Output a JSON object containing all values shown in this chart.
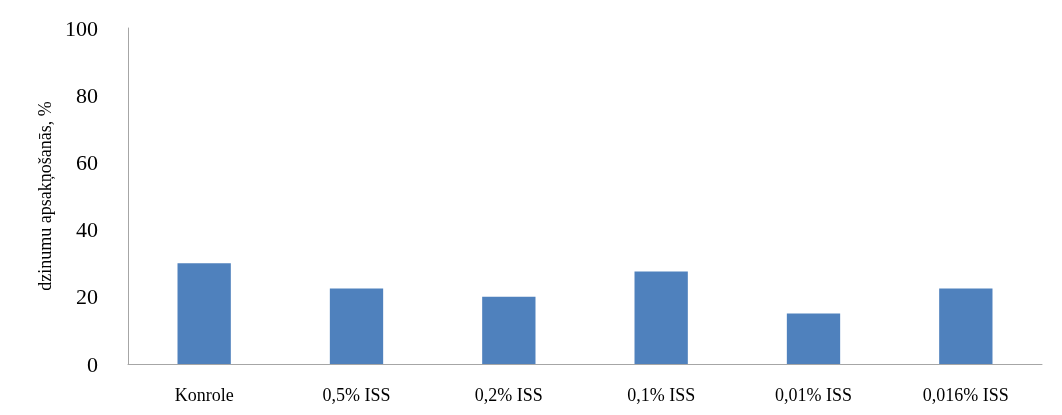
{
  "chart_data": {
    "type": "bar",
    "ylabel": "dzinumu apsakņošanās, %",
    "categories": [
      "Konrole",
      "0,5% ISS",
      "0,2% ISS",
      "0,1% ISS",
      "0,01% ISS",
      "0,016% ISS"
    ],
    "values": [
      30,
      22.5,
      20,
      27.5,
      15,
      22.5
    ],
    "color": "#4f81bd",
    "ylim": [
      0,
      100
    ],
    "yticks": [
      0,
      20,
      40,
      60,
      80,
      100
    ],
    "grid": false
  }
}
